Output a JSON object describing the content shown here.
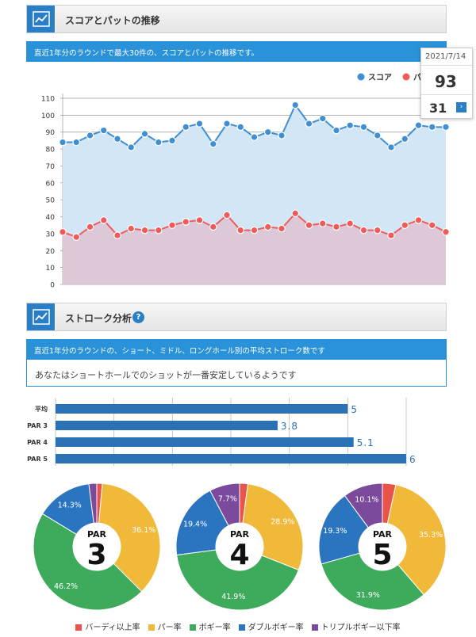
{
  "section1": {
    "title": "スコアとパットの推移",
    "description": "直近1年分のラウンドで最大30件の、スコアとパットの推移です。"
  },
  "tooltip": {
    "date": "2021/7/14",
    "score": "93",
    "putt": "31"
  },
  "section2": {
    "title": "ストローク分析",
    "description": "直近1年分のラウンドの、ショート、ミドル、ロングホール別の平均ストローク数です",
    "note": "あなたはショートホールでのショットが一番安定しているようです"
  },
  "colors": {
    "score": "#3f8fd2",
    "putt": "#ef5b5b",
    "score_fill": "#d3e6f5",
    "putt_fill": "#dcc8d6",
    "bar": "#2a72b5",
    "birdie": "#e8534a",
    "par": "#f0b93a",
    "bogey": "#3daa5c",
    "double": "#2a74c0",
    "triple": "#7b4a9c"
  },
  "chart_data": [
    {
      "type": "line",
      "legend_position": "top-right",
      "series": [
        {
          "name": "スコア",
          "values": [
            84,
            84,
            88,
            91,
            86,
            81,
            89,
            84,
            85,
            93,
            95,
            83,
            95,
            93,
            87,
            90,
            88,
            106,
            95,
            98,
            91,
            94,
            93,
            88,
            81,
            86,
            94,
            93,
            93
          ]
        },
        {
          "name": "パット",
          "values": [
            31,
            28,
            34,
            38,
            29,
            33,
            32,
            32,
            35,
            37,
            38,
            34,
            41,
            32,
            32,
            34,
            33,
            42,
            35,
            36,
            34,
            36,
            32,
            32,
            29,
            35,
            38,
            35,
            31
          ]
        }
      ],
      "yticks": [
        "0",
        "10",
        "20",
        "30",
        "40",
        "50",
        "60",
        "70",
        "80",
        "90",
        "100",
        "110"
      ],
      "ylim": [
        0,
        110
      ],
      "grid": true
    },
    {
      "type": "bar",
      "orientation": "horizontal",
      "categories": [
        "平均",
        "PAR 3",
        "PAR 4",
        "PAR 5"
      ],
      "values": [
        5,
        3.8,
        5.1,
        6
      ],
      "value_labels": [
        "5",
        "3.8",
        "5.1",
        "6"
      ],
      "xlim": [
        0,
        6
      ]
    },
    {
      "type": "pie",
      "title_small": "PAR",
      "title_big": "3",
      "slices": [
        {
          "name": "バーディ以上率",
          "value": 1.4
        },
        {
          "name": "パー率",
          "value": 36.1,
          "label": "36.1%"
        },
        {
          "name": "ボギー率",
          "value": 46.2,
          "label": "46.2%"
        },
        {
          "name": "ダブルボギー率",
          "value": 14.3,
          "label": "14.3%"
        },
        {
          "name": "トリプルボギー以下率",
          "value": 2.0
        }
      ]
    },
    {
      "type": "pie",
      "title_small": "PAR",
      "title_big": "4",
      "slices": [
        {
          "name": "バーディ以上率",
          "value": 2.1
        },
        {
          "name": "パー率",
          "value": 28.9,
          "label": "28.9%"
        },
        {
          "name": "ボギー率",
          "value": 41.9,
          "label": "41.9%"
        },
        {
          "name": "ダブルボギー率",
          "value": 19.4,
          "label": "19.4%"
        },
        {
          "name": "トリプルボギー以下率",
          "value": 7.7,
          "label": "7.7%"
        }
      ]
    },
    {
      "type": "pie",
      "title_small": "PAR",
      "title_big": "5",
      "slices": [
        {
          "name": "バーディ以上率",
          "value": 3.4
        },
        {
          "name": "パー率",
          "value": 35.3,
          "label": "35.3%"
        },
        {
          "name": "ボギー率",
          "value": 31.9,
          "label": "31.9%"
        },
        {
          "name": "ダブルボギー率",
          "value": 19.3,
          "label": "19.3%"
        },
        {
          "name": "トリプルボギー以下率",
          "value": 10.1,
          "label": "10.1%"
        }
      ]
    }
  ]
}
